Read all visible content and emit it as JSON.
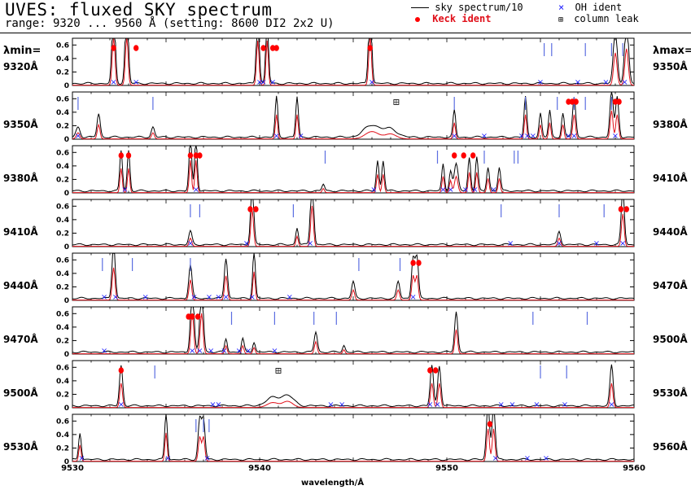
{
  "title": "UVES: fluxed SKY spectrum",
  "subtitle": "range: 9320 ... 9560 Å (setting: 8600 DI2 2x2 U)",
  "legend": {
    "sky": "sky spectrum/10",
    "keck": "Keck ident",
    "oh": "OH ident",
    "leak": "column leak"
  },
  "side_heads": {
    "left": "λmin=",
    "right": "λmax="
  },
  "colors": {
    "sky": "#000000",
    "model": "#e0101a",
    "oh": "#1a1aff",
    "tick": "#5b6ee1",
    "keck": "#ff0000"
  },
  "chart_data": {
    "type": "line",
    "xlabel": "wavelength/Å",
    "ylim": [
      0,
      0.7
    ],
    "yticks": [
      "0",
      "0.2",
      "0.4",
      "0.6"
    ],
    "panels": [
      {
        "min": "9320Å",
        "max": "9350Å",
        "x0": 9320,
        "x1": 9350,
        "peaks": [
          [
            9322.2,
            1.2,
            0.12
          ],
          [
            9322.9,
            1.2,
            0.12
          ],
          [
            9329.9,
            1.1,
            0.11
          ],
          [
            9330.4,
            1.1,
            0.1
          ],
          [
            9335.9,
            1.2,
            0.12
          ],
          [
            9349.0,
            0.8,
            0.15
          ],
          [
            9349.6,
            0.9,
            0.15
          ]
        ],
        "keck": [
          9322.2,
          9323.4,
          9330.2,
          9330.7,
          9330.9,
          9335.9
        ],
        "oh": [
          9322.2,
          9323.4,
          9330.0,
          9330.2,
          9330.7,
          9336.0,
          9345.0,
          9347.0,
          9348.5,
          9349.5
        ],
        "ticks": [
          9345.2,
          9345.6,
          9347.4,
          9348.8,
          9349.4
        ]
      },
      {
        "min": "9350Å",
        "max": "9380Å",
        "x0": 9350,
        "x1": 9380,
        "peaks": [
          [
            9350.3,
            0.15,
            0.15
          ],
          [
            9351.4,
            0.35,
            0.12
          ],
          [
            9354.3,
            0.15,
            0.12
          ],
          [
            9360.9,
            0.6,
            0.1
          ],
          [
            9362.0,
            0.6,
            0.1
          ],
          [
            9366.0,
            0.18,
            0.6
          ],
          [
            9367.0,
            0.12,
            0.5
          ],
          [
            9370.4,
            0.4,
            0.1
          ],
          [
            9374.2,
            0.6,
            0.1
          ],
          [
            9375.0,
            0.35,
            0.1
          ],
          [
            9375.5,
            0.4,
            0.1
          ],
          [
            9376.2,
            0.35,
            0.1
          ],
          [
            9376.8,
            0.6,
            0.12
          ],
          [
            9378.8,
            0.7,
            0.12
          ],
          [
            9379.1,
            0.6,
            0.12
          ]
        ],
        "keck": [
          9376.5,
          9376.7,
          9376.9,
          9379.0,
          9379.2
        ],
        "oh": [
          9350.3,
          9360.9,
          9362.2,
          9370.4,
          9372.0,
          9374.0,
          9374.3,
          9374.6,
          9376.5,
          9376.8,
          9379.0
        ],
        "ticks": [
          9350.3,
          9354.3,
          9370.4,
          9374.2,
          9375.9,
          9376.8,
          9377.4,
          9378.8
        ],
        "leak": [
          [
            9367.3,
            0.55
          ]
        ]
      },
      {
        "min": "9380Å",
        "max": "9410Å",
        "x0": 9380,
        "x1": 9410,
        "peaks": [
          [
            9382.6,
            0.6,
            0.1
          ],
          [
            9383.0,
            0.6,
            0.1
          ],
          [
            9386.3,
            0.8,
            0.1
          ],
          [
            9386.6,
            0.8,
            0.1
          ],
          [
            9393.4,
            0.1,
            0.1
          ],
          [
            9396.3,
            0.45,
            0.1
          ],
          [
            9396.6,
            0.45,
            0.1
          ],
          [
            9399.8,
            0.4,
            0.1
          ],
          [
            9400.2,
            0.3,
            0.1
          ],
          [
            9400.5,
            0.4,
            0.15
          ],
          [
            9401.2,
            0.5,
            0.1
          ],
          [
            9401.6,
            0.5,
            0.1
          ],
          [
            9402.2,
            0.35,
            0.1
          ],
          [
            9402.8,
            0.35,
            0.1
          ]
        ],
        "keck": [
          9382.6,
          9383.0,
          9386.3,
          9386.6,
          9386.8,
          9400.4,
          9400.9,
          9401.4
        ],
        "oh": [
          9382.8,
          9386.6,
          9396.1,
          9399.8,
          9400.2,
          9401.0,
          9401.5,
          9402.5
        ],
        "ticks": [
          9393.5,
          9399.5,
          9402.0,
          9403.6,
          9403.8
        ]
      },
      {
        "min": "9410Å",
        "max": "9440Å",
        "x0": 9410,
        "x1": 9440,
        "peaks": [
          [
            9416.3,
            0.2,
            0.12
          ],
          [
            9419.6,
            0.9,
            0.12
          ],
          [
            9422.0,
            0.25,
            0.1
          ],
          [
            9422.8,
            1.0,
            0.12
          ],
          [
            9436.0,
            0.2,
            0.12
          ],
          [
            9439.4,
            0.8,
            0.12
          ]
        ],
        "keck": [
          9419.5,
          9419.8,
          9439.3,
          9439.6
        ],
        "oh": [
          9416.3,
          9419.3,
          9422.7,
          9433.4,
          9436.0,
          9438.0,
          9439.4
        ],
        "ticks": [
          9416.3,
          9416.8,
          9421.8,
          9432.9,
          9436.0,
          9438.4
        ]
      },
      {
        "min": "9440Å",
        "max": "9470Å",
        "x0": 9440,
        "x1": 9470,
        "peaks": [
          [
            9442.2,
            0.8,
            0.12
          ],
          [
            9446.3,
            0.5,
            0.12
          ],
          [
            9448.2,
            0.6,
            0.12
          ],
          [
            9449.7,
            0.7,
            0.1
          ],
          [
            9455.0,
            0.25,
            0.12
          ],
          [
            9457.4,
            0.25,
            0.12
          ],
          [
            9458.2,
            0.6,
            0.12
          ],
          [
            9458.4,
            0.6,
            0.12
          ]
        ],
        "keck": [
          9458.2,
          9458.5
        ],
        "oh": [
          9441.7,
          9442.3,
          9443.9,
          9446.5,
          9447.3,
          9447.8,
          9448.2,
          9449.6,
          9451.6,
          9458.2
        ],
        "ticks": [
          9441.6,
          9443.2,
          9446.3,
          9455.3,
          9457.5
        ]
      },
      {
        "min": "9470Å",
        "max": "9500Å",
        "x0": 9470,
        "x1": 9500,
        "peaks": [
          [
            9476.4,
            1.0,
            0.13
          ],
          [
            9476.9,
            1.0,
            0.13
          ],
          [
            9478.2,
            0.2,
            0.1
          ],
          [
            9479.1,
            0.2,
            0.1
          ],
          [
            9479.7,
            0.15,
            0.1
          ],
          [
            9483.0,
            0.3,
            0.12
          ],
          [
            9484.5,
            0.1,
            0.1
          ],
          [
            9490.5,
            0.6,
            0.12
          ]
        ],
        "keck": [
          9476.2,
          9476.4,
          9476.7
        ],
        "oh": [
          9471.7,
          9476.4,
          9476.8,
          9477.4,
          9478.1,
          9478.9,
          9479.4,
          9480.8
        ],
        "ticks": [
          9478.5,
          9480.8,
          9482.9,
          9484.1,
          9494.6,
          9497.5
        ]
      },
      {
        "min": "9500Å",
        "max": "9530Å",
        "x0": 9500,
        "x1": 9530,
        "peaks": [
          [
            9502.6,
            0.6,
            0.12
          ],
          [
            9510.7,
            0.12,
            0.5
          ],
          [
            9511.5,
            0.15,
            0.45
          ],
          [
            9519.2,
            0.6,
            0.12
          ],
          [
            9519.6,
            0.6,
            0.12
          ],
          [
            9528.8,
            0.6,
            0.12
          ]
        ],
        "keck": [
          9502.6,
          9519.1,
          9519.4
        ],
        "oh": [
          9502.6,
          9507.5,
          9507.8,
          9513.8,
          9514.4,
          9519.1,
          9519.5,
          9522.9,
          9523.5,
          9524.8,
          9526.3,
          9528.8
        ],
        "ticks": [
          9504.4,
          9525.0,
          9526.4
        ],
        "leak": [
          9511.0,
          0.55
        ]
      },
      {
        "min": "9530Å",
        "max": "9560Å",
        "x0": 9530,
        "x1": 9560,
        "peaks": [
          [
            9530.4,
            0.4,
            0.1
          ],
          [
            9535.0,
            0.7,
            0.1
          ],
          [
            9536.8,
            0.6,
            0.12
          ],
          [
            9537.0,
            0.6,
            0.12
          ],
          [
            9552.2,
            0.8,
            0.12
          ],
          [
            9552.5,
            0.8,
            0.12
          ]
        ],
        "keck": [
          9552.3
        ],
        "oh": [
          9530.5,
          9535.1,
          9537.2,
          9552.6,
          9554.3,
          9555.3
        ],
        "ticks": [
          9536.6,
          9537.0,
          9537.3
        ],
        "xticks": [
          "9530",
          "9540",
          "9550",
          "9560"
        ]
      }
    ]
  }
}
